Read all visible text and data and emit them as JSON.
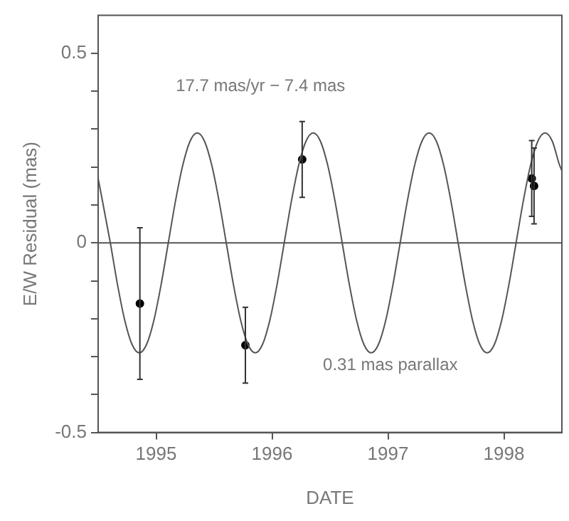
{
  "chart_data": {
    "type": "scatter",
    "xlabel": "DATE",
    "ylabel": "E/W Residual (mas)",
    "xlim": [
      1994.5,
      1998.5
    ],
    "ylim": [
      -0.5,
      0.6
    ],
    "xticks": [
      1995,
      1996,
      1997,
      1998
    ],
    "yticks": [
      -0.5,
      {
        "value": -0.4,
        "label": null
      },
      {
        "value": -0.3,
        "label": null
      },
      {
        "value": -0.2,
        "label": null
      },
      {
        "value": -0.1,
        "label": null
      },
      0,
      {
        "value": 0.1,
        "label": null
      },
      {
        "value": 0.2,
        "label": null
      },
      {
        "value": 0.3,
        "label": null
      },
      {
        "value": 0.4,
        "label": null
      },
      0.5
    ],
    "grid": false,
    "legend": false,
    "marker": "circle",
    "ref_lines": [
      {
        "axis": "y",
        "value": 0,
        "color": "#555555"
      }
    ],
    "annotations": [
      "17.7 mas/yr − 7.4 mas",
      "0.31 mas parallax"
    ],
    "series": [
      {
        "type": "line",
        "color": "#555555",
        "marker": "none",
        "x": [
          1994.5,
          1994.605,
          1994.6675,
          1994.73,
          1994.7925,
          1994.855,
          1994.9175,
          1994.98,
          1995.0425,
          1995.105,
          1995.1675,
          1995.23,
          1995.2925,
          1995.355,
          1995.4175,
          1995.48,
          1995.5425,
          1995.605,
          1995.6675,
          1995.73,
          1995.7925,
          1995.855,
          1995.9175,
          1995.98,
          1996.0425,
          1996.105,
          1996.1675,
          1996.23,
          1996.2925,
          1996.355,
          1996.4175,
          1996.48,
          1996.5425,
          1996.605,
          1996.6675,
          1996.73,
          1996.7925,
          1996.855,
          1996.9175,
          1996.98,
          1997.0425,
          1997.105,
          1997.1675,
          1997.23,
          1997.2925,
          1997.355,
          1997.4175,
          1997.48,
          1997.5425,
          1997.605,
          1997.6675,
          1997.73,
          1997.7925,
          1997.855,
          1997.9175,
          1997.98,
          1998.0425,
          1998.105,
          1998.1675,
          1998.23,
          1998.2925,
          1998.355,
          1998.4175,
          1998.48,
          1998.5
        ],
        "values": [
          0.17,
          0,
          -0.111,
          -0.205,
          -0.268,
          -0.29,
          -0.268,
          -0.205,
          -0.111,
          0,
          0.111,
          0.205,
          0.268,
          0.29,
          0.268,
          0.205,
          0.111,
          0,
          -0.111,
          -0.205,
          -0.268,
          -0.29,
          -0.268,
          -0.205,
          -0.111,
          0,
          0.111,
          0.205,
          0.268,
          0.29,
          0.268,
          0.205,
          0.111,
          0,
          -0.111,
          -0.205,
          -0.268,
          -0.29,
          -0.268,
          -0.205,
          -0.111,
          0,
          0.111,
          0.205,
          0.268,
          0.29,
          0.268,
          0.205,
          0.111,
          0,
          -0.111,
          -0.205,
          -0.268,
          -0.29,
          -0.268,
          -0.205,
          -0.111,
          0,
          0.111,
          0.205,
          0.268,
          0.29,
          0.268,
          0.205,
          0.19
        ]
      },
      {
        "color": "#000000",
        "x": [
          1994.86,
          1995.77,
          1996.26,
          1998.24,
          1998.26
        ],
        "values": [
          -0.16,
          -0.27,
          0.22,
          0.17,
          0.15
        ],
        "errors": [
          0.2,
          0.1,
          0.1,
          0.1,
          0.1
        ]
      }
    ]
  }
}
